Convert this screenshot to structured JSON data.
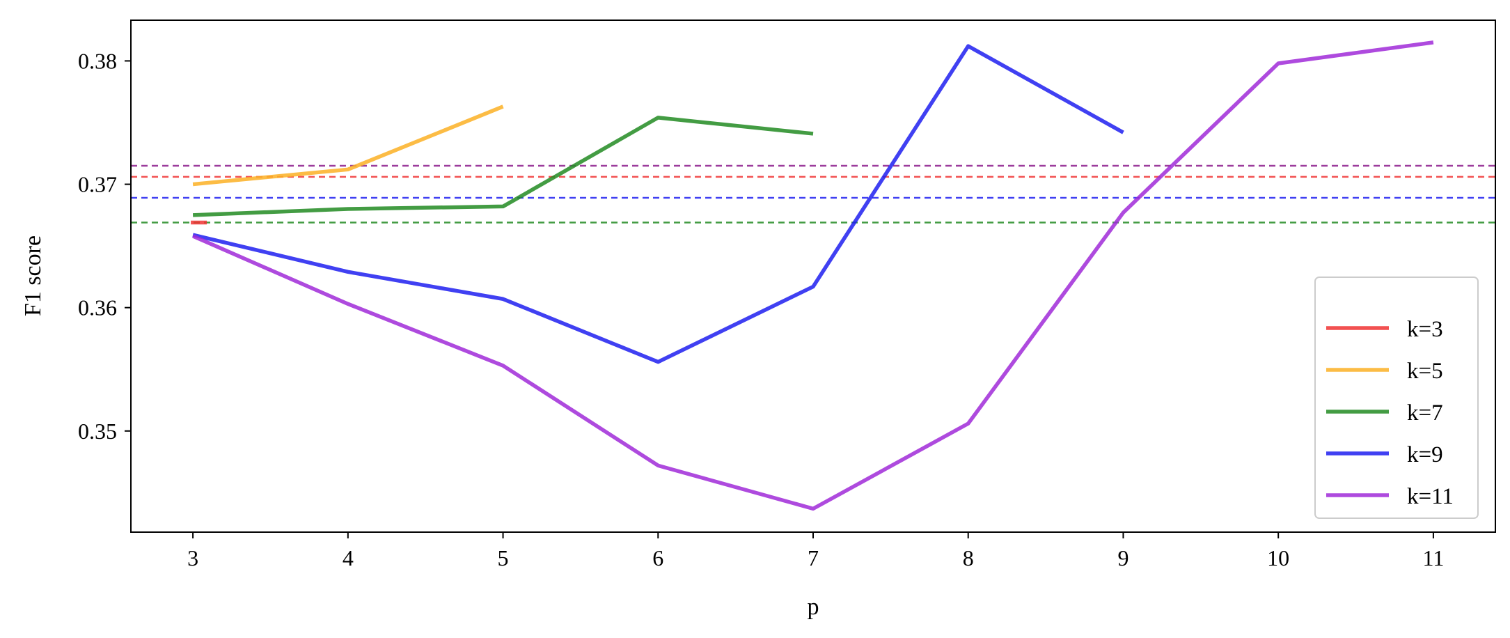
{
  "chart_data": {
    "type": "line",
    "title": "",
    "xlabel": "p",
    "ylabel": "F1 score",
    "xlim": [
      2.6,
      11.4
    ],
    "ylim": [
      0.3418,
      0.3833
    ],
    "x_ticks": [
      3,
      4,
      5,
      6,
      7,
      8,
      9,
      10,
      11
    ],
    "y_ticks": [
      0.35,
      0.36,
      0.37,
      0.38
    ],
    "y_tick_labels": [
      "0.35",
      "0.36",
      "0.37",
      "0.38"
    ],
    "grid": false,
    "legend_placement": "lower-right",
    "series": [
      {
        "name": "k=3",
        "color": "#f03232",
        "x": [
          3
        ],
        "y": [
          0.3669
        ],
        "baseline": 0.3706
      },
      {
        "name": "k=5",
        "color": "#fbb024",
        "x": [
          3,
          4,
          5
        ],
        "y": [
          0.37,
          0.3712,
          0.3763
        ],
        "baseline": null
      },
      {
        "name": "k=7",
        "color": "#228b22",
        "x": [
          3,
          4,
          5,
          6,
          7
        ],
        "y": [
          0.3675,
          0.368,
          0.3682,
          0.3754,
          0.3741
        ],
        "baseline": 0.3669
      },
      {
        "name": "k=9",
        "color": "#1e1ef0",
        "x": [
          3,
          4,
          5,
          6,
          7,
          8,
          9
        ],
        "y": [
          0.3659,
          0.3629,
          0.3607,
          0.3556,
          0.3617,
          0.3812,
          0.3742
        ],
        "baseline": 0.3689
      },
      {
        "name": "k=11",
        "color": "#a02ad8",
        "x": [
          3,
          4,
          5,
          6,
          7,
          8,
          9,
          10,
          11
        ],
        "y": [
          0.3658,
          0.3603,
          0.3553,
          0.3472,
          0.3437,
          0.3506,
          0.3677,
          0.3798,
          0.3815
        ],
        "baseline": 0.3715
      }
    ],
    "baseline_colors": {
      "k=3": "#f03232",
      "k=7": "#228b22",
      "k=9": "#1e1ef0",
      "k=11": "#8b1a8b"
    }
  }
}
